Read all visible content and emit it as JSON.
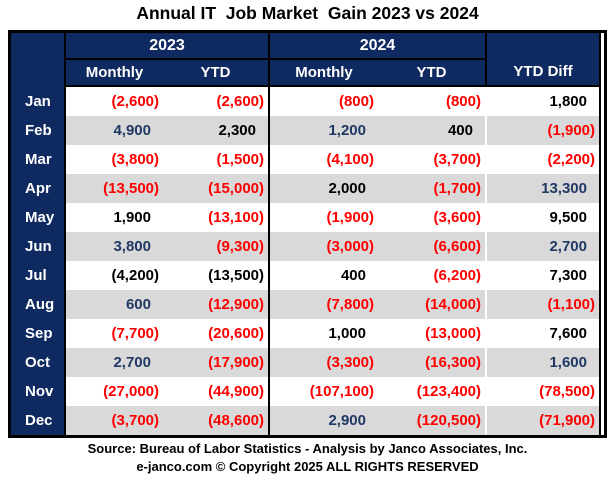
{
  "title": "Annual IT  Job Market  Gain 2023 vs 2024",
  "colors": {
    "header_navy": "#0F2961",
    "row_gray": "#D9D9D9",
    "negative_red": "#FF0000",
    "positive_black": "#000000",
    "positive_navy": "#1F3864"
  },
  "table": {
    "groups": [
      {
        "label": "2023"
      },
      {
        "label": "2024"
      }
    ],
    "subheaders": [
      {
        "label": "Monthly"
      },
      {
        "label": "YTD"
      },
      {
        "label": "Monthly"
      },
      {
        "label": "YTD"
      }
    ],
    "ytd_diff_label": "YTD Diff",
    "rows": [
      {
        "month": "Jan",
        "cells": [
          {
            "v": "(2,600)",
            "c": "red"
          },
          {
            "v": "(2,600)",
            "c": "red"
          },
          {
            "v": "(800)",
            "c": "red"
          },
          {
            "v": "(800)",
            "c": "red"
          },
          {
            "v": "1,800",
            "c": "black"
          }
        ]
      },
      {
        "month": "Feb",
        "cells": [
          {
            "v": "4,900",
            "c": "navy"
          },
          {
            "v": "2,300",
            "c": "black"
          },
          {
            "v": "1,200",
            "c": "navy"
          },
          {
            "v": "400",
            "c": "black"
          },
          {
            "v": "(1,900)",
            "c": "red"
          }
        ]
      },
      {
        "month": "Mar",
        "cells": [
          {
            "v": "(3,800)",
            "c": "red"
          },
          {
            "v": "(1,500)",
            "c": "red"
          },
          {
            "v": "(4,100)",
            "c": "red"
          },
          {
            "v": "(3,700)",
            "c": "red"
          },
          {
            "v": "(2,200)",
            "c": "red"
          }
        ]
      },
      {
        "month": "Apr",
        "cells": [
          {
            "v": "(13,500)",
            "c": "red"
          },
          {
            "v": "(15,000)",
            "c": "red"
          },
          {
            "v": "2,000",
            "c": "black"
          },
          {
            "v": "(1,700)",
            "c": "red"
          },
          {
            "v": "13,300",
            "c": "navy"
          }
        ]
      },
      {
        "month": "May",
        "cells": [
          {
            "v": "1,900",
            "c": "black"
          },
          {
            "v": "(13,100)",
            "c": "red"
          },
          {
            "v": "(1,900)",
            "c": "red"
          },
          {
            "v": "(3,600)",
            "c": "red"
          },
          {
            "v": "9,500",
            "c": "black"
          }
        ]
      },
      {
        "month": "Jun",
        "cells": [
          {
            "v": "3,800",
            "c": "navy"
          },
          {
            "v": "(9,300)",
            "c": "red"
          },
          {
            "v": "(3,000)",
            "c": "red"
          },
          {
            "v": "(6,600)",
            "c": "red"
          },
          {
            "v": "2,700",
            "c": "navy"
          }
        ]
      },
      {
        "month": "Jul",
        "cells": [
          {
            "v": "(4,200)",
            "c": "blackneg"
          },
          {
            "v": "(13,500)",
            "c": "blackneg"
          },
          {
            "v": "400",
            "c": "black"
          },
          {
            "v": "(6,200)",
            "c": "red"
          },
          {
            "v": "7,300",
            "c": "black"
          }
        ]
      },
      {
        "month": "Aug",
        "cells": [
          {
            "v": "600",
            "c": "navy"
          },
          {
            "v": "(12,900)",
            "c": "red"
          },
          {
            "v": "(7,800)",
            "c": "red"
          },
          {
            "v": "(14,000)",
            "c": "red"
          },
          {
            "v": "(1,100)",
            "c": "red"
          }
        ]
      },
      {
        "month": "Sep",
        "cells": [
          {
            "v": "(7,700)",
            "c": "red"
          },
          {
            "v": "(20,600)",
            "c": "red"
          },
          {
            "v": "1,000",
            "c": "black"
          },
          {
            "v": "(13,000)",
            "c": "red"
          },
          {
            "v": "7,600",
            "c": "black"
          }
        ]
      },
      {
        "month": "Oct",
        "cells": [
          {
            "v": "2,700",
            "c": "navy"
          },
          {
            "v": "(17,900)",
            "c": "red"
          },
          {
            "v": "(3,300)",
            "c": "red"
          },
          {
            "v": "(16,300)",
            "c": "red"
          },
          {
            "v": "1,600",
            "c": "navy"
          }
        ]
      },
      {
        "month": "Nov",
        "cells": [
          {
            "v": "(27,000)",
            "c": "red"
          },
          {
            "v": "(44,900)",
            "c": "red"
          },
          {
            "v": "(107,100)",
            "c": "red"
          },
          {
            "v": "(123,400)",
            "c": "red"
          },
          {
            "v": "(78,500)",
            "c": "red"
          }
        ]
      },
      {
        "month": "Dec",
        "cells": [
          {
            "v": "(3,700)",
            "c": "red"
          },
          {
            "v": "(48,600)",
            "c": "red"
          },
          {
            "v": "2,900",
            "c": "navy"
          },
          {
            "v": "(120,500)",
            "c": "red"
          },
          {
            "v": "(71,900)",
            "c": "red"
          }
        ]
      }
    ]
  },
  "footer": {
    "line1": "Source: Bureau of Labor Statistics - Analysis by Janco Associates, Inc.",
    "line2": "e-janco.com © Copyright 2025 ALL RIGHTS RESERVED"
  },
  "chart_data": {
    "type": "table",
    "title": "Annual IT Job Market Gain 2023 vs 2024",
    "categories": [
      "Jan",
      "Feb",
      "Mar",
      "Apr",
      "May",
      "Jun",
      "Jul",
      "Aug",
      "Sep",
      "Oct",
      "Nov",
      "Dec"
    ],
    "series": [
      {
        "name": "2023 Monthly",
        "values": [
          -2600,
          4900,
          -3800,
          -13500,
          1900,
          3800,
          -4200,
          600,
          -7700,
          2700,
          -27000,
          -3700
        ]
      },
      {
        "name": "2023 YTD",
        "values": [
          -2600,
          2300,
          -1500,
          -15000,
          -13100,
          -9300,
          -13500,
          -12900,
          -20600,
          -17900,
          -44900,
          -48600
        ]
      },
      {
        "name": "2024 Monthly",
        "values": [
          -800,
          1200,
          -4100,
          2000,
          -1900,
          -3000,
          400,
          -7800,
          1000,
          -3300,
          -107100,
          2900
        ]
      },
      {
        "name": "2024 YTD",
        "values": [
          -800,
          400,
          -3700,
          -1700,
          -3600,
          -6600,
          -6200,
          -14000,
          -13000,
          -16300,
          -123400,
          -120500
        ]
      },
      {
        "name": "YTD Diff",
        "values": [
          1800,
          -1900,
          -2200,
          13300,
          9500,
          2700,
          7300,
          -1100,
          7600,
          1600,
          -78500,
          -71900
        ]
      }
    ],
    "legend_position": "none",
    "grid": false
  }
}
